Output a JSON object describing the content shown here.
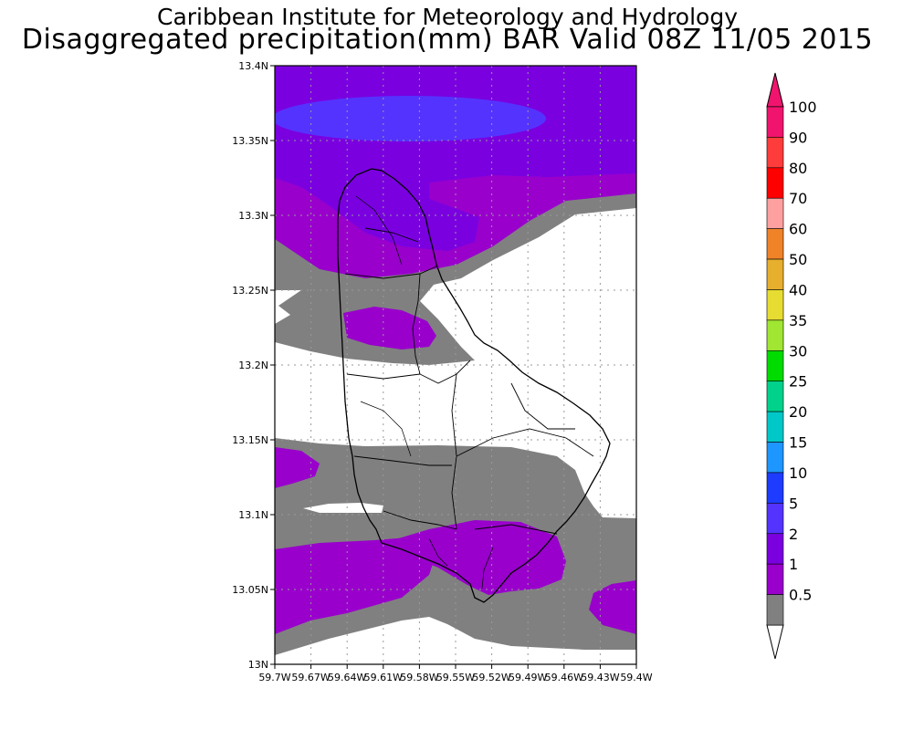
{
  "header": {
    "line1": "Caribbean Institute for Meteorology and Hydrology",
    "line2": "Disaggregated precipitation(mm) BAR Valid 08Z 11/05 2015"
  },
  "map": {
    "lat_ticks": [
      "13.4N",
      "13.35N",
      "13.3N",
      "13.25N",
      "13.2N",
      "13.15N",
      "13.1N",
      "13.05N",
      "13N"
    ],
    "lon_ticks": [
      "59.7W",
      "59.67W",
      "59.64W",
      "59.61W",
      "59.58W",
      "59.55W",
      "59.52W",
      "59.49W",
      "59.46W",
      "59.43W",
      "59.4W"
    ],
    "lat_range": [
      13.0,
      13.4
    ],
    "lon_range": [
      -59.7,
      -59.4
    ],
    "grid": true,
    "colors": {
      "lt05": "#ffffff",
      "c05_1": "#808080",
      "c1_2": "#9900cc",
      "c2_5": "#7a00e0",
      "c5_10": "#5533ff"
    }
  },
  "colorbar": {
    "levels": [
      {
        "label": "100",
        "color": "#f0146e"
      },
      {
        "label": "90",
        "color": "#ff3c3c"
      },
      {
        "label": "80",
        "color": "#ff0000"
      },
      {
        "label": "70",
        "color": "#ffa0a0"
      },
      {
        "label": "60",
        "color": "#f08228"
      },
      {
        "label": "50",
        "color": "#e6af2d"
      },
      {
        "label": "40",
        "color": "#e6dc32"
      },
      {
        "label": "35",
        "color": "#a0e632"
      },
      {
        "label": "30",
        "color": "#00dc00"
      },
      {
        "label": "25",
        "color": "#00d28c"
      },
      {
        "label": "20",
        "color": "#00c8c8"
      },
      {
        "label": "15",
        "color": "#1e96ff"
      },
      {
        "label": "10",
        "color": "#1e3cff"
      },
      {
        "label": "5",
        "color": "#5533ff"
      },
      {
        "label": "2",
        "color": "#7a00e0"
      },
      {
        "label": "1",
        "color": "#9900cc"
      },
      {
        "label": "0.5",
        "color": "#808080"
      }
    ],
    "top_arrow_color": "#f0146e",
    "bottom_arrow_color": "#ffffff"
  }
}
